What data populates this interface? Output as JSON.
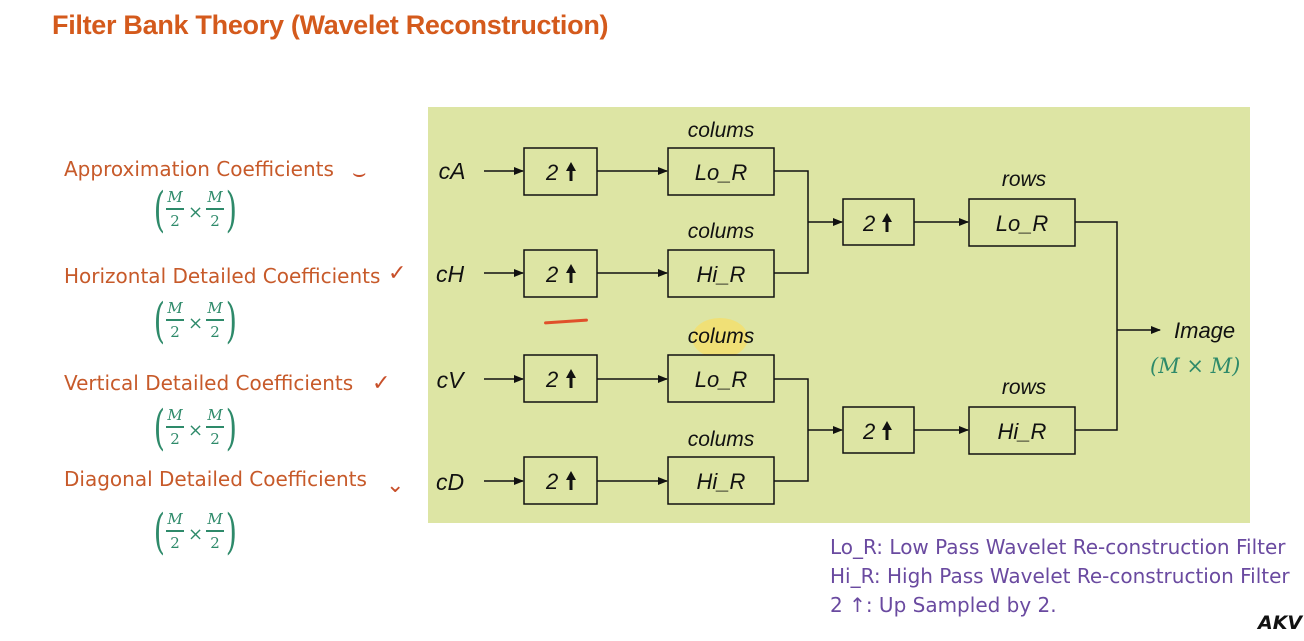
{
  "title": "Filter Bank Theory (Wavelet Reconstruction)",
  "coefficients": [
    {
      "label": "Approximation Coefficients",
      "frac_num": "M",
      "frac_den": "2",
      "times": "×"
    },
    {
      "label": "Horizontal Detailed Coefficients",
      "frac_num": "M",
      "frac_den": "2",
      "times": "×"
    },
    {
      "label": "Vertical Detailed Coefficients",
      "frac_num": "M",
      "frac_den": "2",
      "times": "×"
    },
    {
      "label": "Diagonal Detailed Coefficients",
      "frac_num": "M",
      "frac_den": "2",
      "times": "×"
    }
  ],
  "inputs": [
    "cA",
    "cH",
    "cV",
    "cD"
  ],
  "upsample_label": "2",
  "stage1": [
    {
      "heading": "colums",
      "filter": "Lo_R"
    },
    {
      "heading": "colums",
      "filter": "Hi_R"
    },
    {
      "heading": "colums",
      "filter": "Lo_R"
    },
    {
      "heading": "colums",
      "filter": "Hi_R"
    }
  ],
  "stage2": [
    {
      "heading": "rows",
      "filter": "Lo_R"
    },
    {
      "heading": "rows",
      "filter": "Hi_R"
    }
  ],
  "output": {
    "label": "Image",
    "dims": "(M × M)"
  },
  "legend": [
    "Lo_R: Low Pass Wavelet Re-construction Filter",
    "Hi_R: High Pass Wavelet Re-construction Filter",
    "2 ↑: Up Sampled by 2."
  ],
  "watermark": "AKV",
  "colors": {
    "title": "#d45a1c",
    "coef_label": "#c75a2a",
    "formula": "#2e8a6a",
    "panel": "#dde5a4",
    "legend": "#6a4aa0"
  }
}
